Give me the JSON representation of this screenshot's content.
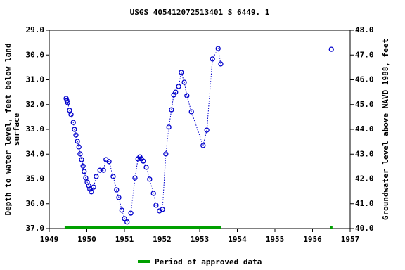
{
  "chart_data": {
    "type": "scatter-line",
    "title": "USGS 405412072513401 S  6449. 1",
    "ylabel": [
      "Depth to water level, feet below land",
      "surface"
    ],
    "y2label": "Groundwater level above NAVD 1988, feet",
    "xlim": [
      1949,
      1957
    ],
    "xticks": [
      1949,
      1950,
      1951,
      1952,
      1953,
      1954,
      1955,
      1956,
      1957
    ],
    "ylim": [
      37.0,
      29.0
    ],
    "yticks": [
      {
        "value": 29,
        "label": "29.0"
      },
      {
        "value": 30,
        "label": "30.0"
      },
      {
        "value": 31,
        "label": "31.0"
      },
      {
        "value": 32,
        "label": "32.0"
      },
      {
        "value": 33,
        "label": "33.0"
      },
      {
        "value": 34,
        "label": "34.0"
      },
      {
        "value": 35,
        "label": "35.0"
      },
      {
        "value": 36,
        "label": "36.0"
      },
      {
        "value": 37,
        "label": "37.0"
      }
    ],
    "y2lim": [
      40.0,
      48.0
    ],
    "y2ticks": [
      {
        "value": 48,
        "label": "48.0"
      },
      {
        "value": 47,
        "label": "47.0"
      },
      {
        "value": 46,
        "label": "46.0"
      },
      {
        "value": 45,
        "label": "45.0"
      },
      {
        "value": 44,
        "label": "44.0"
      },
      {
        "value": 43,
        "label": "43.0"
      },
      {
        "value": 42,
        "label": "42.0"
      },
      {
        "value": 41,
        "label": "41.0"
      },
      {
        "value": 40,
        "label": "40.0"
      }
    ],
    "color": "#0000cc",
    "x": [
      1949.45,
      1949.47,
      1949.49,
      1949.54,
      1949.58,
      1949.64,
      1949.67,
      1949.71,
      1949.75,
      1949.79,
      1949.82,
      1949.86,
      1949.9,
      1949.93,
      1949.97,
      1950.01,
      1950.05,
      1950.08,
      1950.12,
      1950.18,
      1950.25,
      1950.35,
      1950.44,
      1950.51,
      1950.59,
      1950.7,
      1950.79,
      1950.85,
      1950.93,
      1951.0,
      1951.07,
      1951.17,
      1951.28,
      1951.36,
      1951.41,
      1951.45,
      1951.5,
      1951.58,
      1951.67,
      1951.77,
      1951.84,
      1951.93,
      1952.01,
      1952.1,
      1952.18,
      1952.25,
      1952.31,
      1952.36,
      1952.44,
      1952.51,
      1952.59,
      1952.66,
      1952.78,
      1953.09,
      1953.19,
      1953.34,
      1953.49,
      1953.56,
      null,
      1956.5
    ],
    "values": [
      31.75,
      31.84,
      31.92,
      32.23,
      32.4,
      32.72,
      33.0,
      33.23,
      33.48,
      33.71,
      33.99,
      34.22,
      34.48,
      34.7,
      34.96,
      35.13,
      35.27,
      35.41,
      35.52,
      35.33,
      34.9,
      34.65,
      34.65,
      34.22,
      34.3,
      34.9,
      35.44,
      35.75,
      36.26,
      36.6,
      36.74,
      36.38,
      34.96,
      34.19,
      34.11,
      34.19,
      34.28,
      34.53,
      35.01,
      35.58,
      36.06,
      36.29,
      36.23,
      33.99,
      32.91,
      32.21,
      31.61,
      31.5,
      31.27,
      30.7,
      31.1,
      31.64,
      32.29,
      33.65,
      33.03,
      30.16,
      29.74,
      30.36,
      null,
      29.77
    ],
    "approved_periods": [
      [
        1949.41,
        1953.57
      ],
      [
        1956.47,
        1956.53
      ]
    ],
    "approved_color": "#00a000",
    "legend": "Period of approved data"
  }
}
